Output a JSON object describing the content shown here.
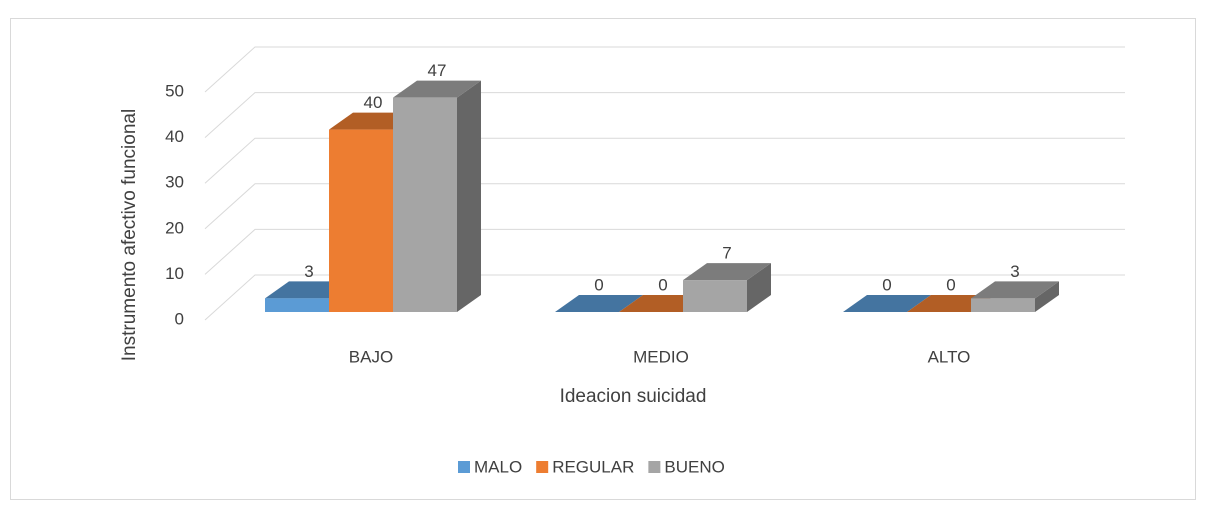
{
  "chart_data": {
    "type": "bar3d",
    "categories": [
      "BAJO",
      "MEDIO",
      "ALTO"
    ],
    "series": [
      {
        "name": "MALO",
        "color": "#5b9bd5",
        "values": [
          3,
          0,
          0
        ]
      },
      {
        "name": "REGULAR",
        "color": "#ed7d31",
        "values": [
          40,
          0,
          0
        ]
      },
      {
        "name": "BUENO",
        "color": "#a5a5a5",
        "values": [
          47,
          7,
          3
        ]
      }
    ],
    "xlabel": "Ideacion suicidad",
    "ylabel": "Instrumento afectivo funcional",
    "ylim": [
      0,
      50
    ],
    "yticks": [
      0,
      10,
      20,
      30,
      40,
      50
    ],
    "grid": true,
    "legend": "bottom"
  }
}
